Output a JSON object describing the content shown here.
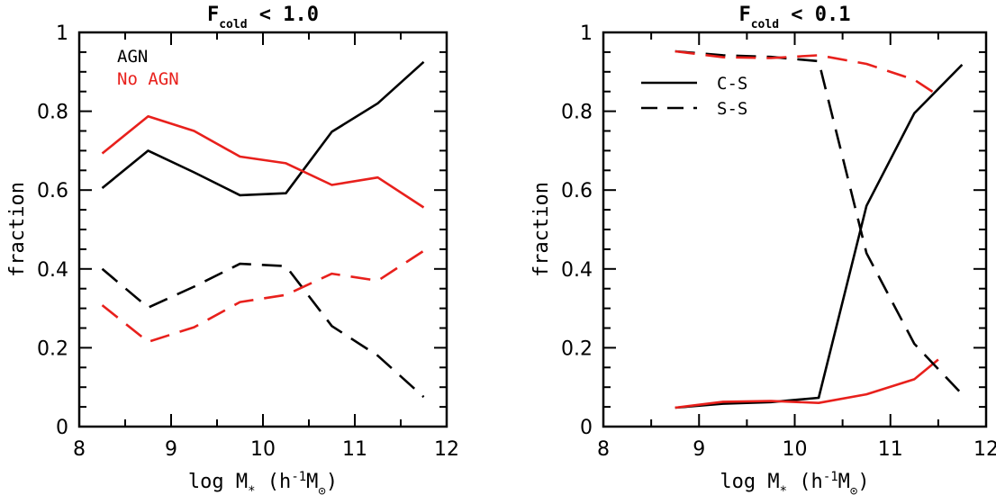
{
  "chart_data": [
    {
      "type": "line",
      "title": {
        "main": "F",
        "sub": "cold",
        "rest": " < 1.0"
      },
      "xlabel": {
        "pre": "log M",
        "sub": "*",
        "mid": " (h",
        "sup": "-1",
        "post": "M",
        "sub2": "⊙",
        "end": ")"
      },
      "ylabel": "fraction",
      "xlim": [
        8,
        12
      ],
      "ylim": [
        0,
        1
      ],
      "x_ticks": [
        "8",
        "9",
        "10",
        "11",
        "12"
      ],
      "y_ticks": [
        "0",
        "0.2",
        "0.4",
        "0.6",
        "0.8",
        "1"
      ],
      "legend": {
        "placement": "top-left",
        "entries": [
          {
            "label": "AGN",
            "color": "#000000"
          },
          {
            "label": "No AGN",
            "color": "#e8201c"
          }
        ]
      },
      "series": [
        {
          "name": "AGN",
          "color": "#000000",
          "dash": false,
          "x": [
            8.25,
            8.75,
            9.25,
            9.75,
            10.25,
            10.75,
            11.25,
            11.75
          ],
          "y": [
            0.605,
            0.7,
            0.645,
            0.587,
            0.592,
            0.748,
            0.82,
            0.925
          ]
        },
        {
          "name": "No AGN",
          "color": "#e8201c",
          "dash": false,
          "x": [
            8.25,
            8.75,
            9.25,
            9.75,
            10.25,
            10.75,
            11.25,
            11.75
          ],
          "y": [
            0.693,
            0.787,
            0.75,
            0.685,
            0.668,
            0.613,
            0.632,
            0.556
          ]
        },
        {
          "name": "AGN",
          "color": "#000000",
          "dash": true,
          "x": [
            8.25,
            8.75,
            9.25,
            9.75,
            10.25,
            10.75,
            11.25,
            11.75
          ],
          "y": [
            0.4,
            0.302,
            0.355,
            0.413,
            0.407,
            0.255,
            0.18,
            0.075
          ]
        },
        {
          "name": "No AGN",
          "color": "#e8201c",
          "dash": true,
          "x": [
            8.25,
            8.75,
            9.25,
            9.75,
            10.25,
            10.75,
            11.25,
            11.75
          ],
          "y": [
            0.308,
            0.215,
            0.252,
            0.316,
            0.334,
            0.388,
            0.37,
            0.446
          ]
        }
      ]
    },
    {
      "type": "line",
      "title": {
        "main": "F",
        "sub": "cold",
        "rest": " < 0.1"
      },
      "xlabel": {
        "pre": "log M",
        "sub": "*",
        "mid": " (h",
        "sup": "-1",
        "post": "M",
        "sub2": "⊙",
        "end": ")"
      },
      "ylabel": "fraction",
      "xlim": [
        8,
        12
      ],
      "ylim": [
        0,
        1
      ],
      "x_ticks": [
        "8",
        "9",
        "10",
        "11",
        "12"
      ],
      "y_ticks": [
        "0",
        "0.2",
        "0.4",
        "0.6",
        "0.8",
        "1"
      ],
      "legend": {
        "placement": "top-left",
        "entries": [
          {
            "label": "C-S",
            "color": "#000000",
            "dash": false
          },
          {
            "label": "S-S",
            "color": "#000000",
            "dash": true
          }
        ]
      },
      "series": [
        {
          "name": "C-S",
          "color": "#000000",
          "dash": false,
          "x": [
            8.75,
            9.25,
            9.75,
            10.25,
            10.75,
            11.25,
            11.75
          ],
          "y": [
            0.048,
            0.058,
            0.062,
            0.073,
            0.56,
            0.795,
            0.918
          ]
        },
        {
          "name": "C-S",
          "color": "#e8201c",
          "dash": false,
          "x": [
            8.75,
            9.25,
            9.75,
            10.25,
            10.75,
            11.25,
            11.5
          ],
          "y": [
            0.048,
            0.063,
            0.065,
            0.06,
            0.082,
            0.12,
            0.17
          ]
        },
        {
          "name": "S-S",
          "color": "#000000",
          "dash": true,
          "x": [
            8.75,
            9.25,
            9.75,
            10.25,
            10.75,
            11.25,
            11.75
          ],
          "y": [
            0.952,
            0.942,
            0.938,
            0.927,
            0.44,
            0.21,
            0.082
          ]
        },
        {
          "name": "S-S",
          "color": "#e8201c",
          "dash": true,
          "x": [
            8.75,
            9.25,
            9.75,
            10.25,
            10.75,
            11.25,
            11.5
          ],
          "y": [
            0.952,
            0.937,
            0.935,
            0.942,
            0.92,
            0.88,
            0.84
          ]
        }
      ]
    }
  ]
}
